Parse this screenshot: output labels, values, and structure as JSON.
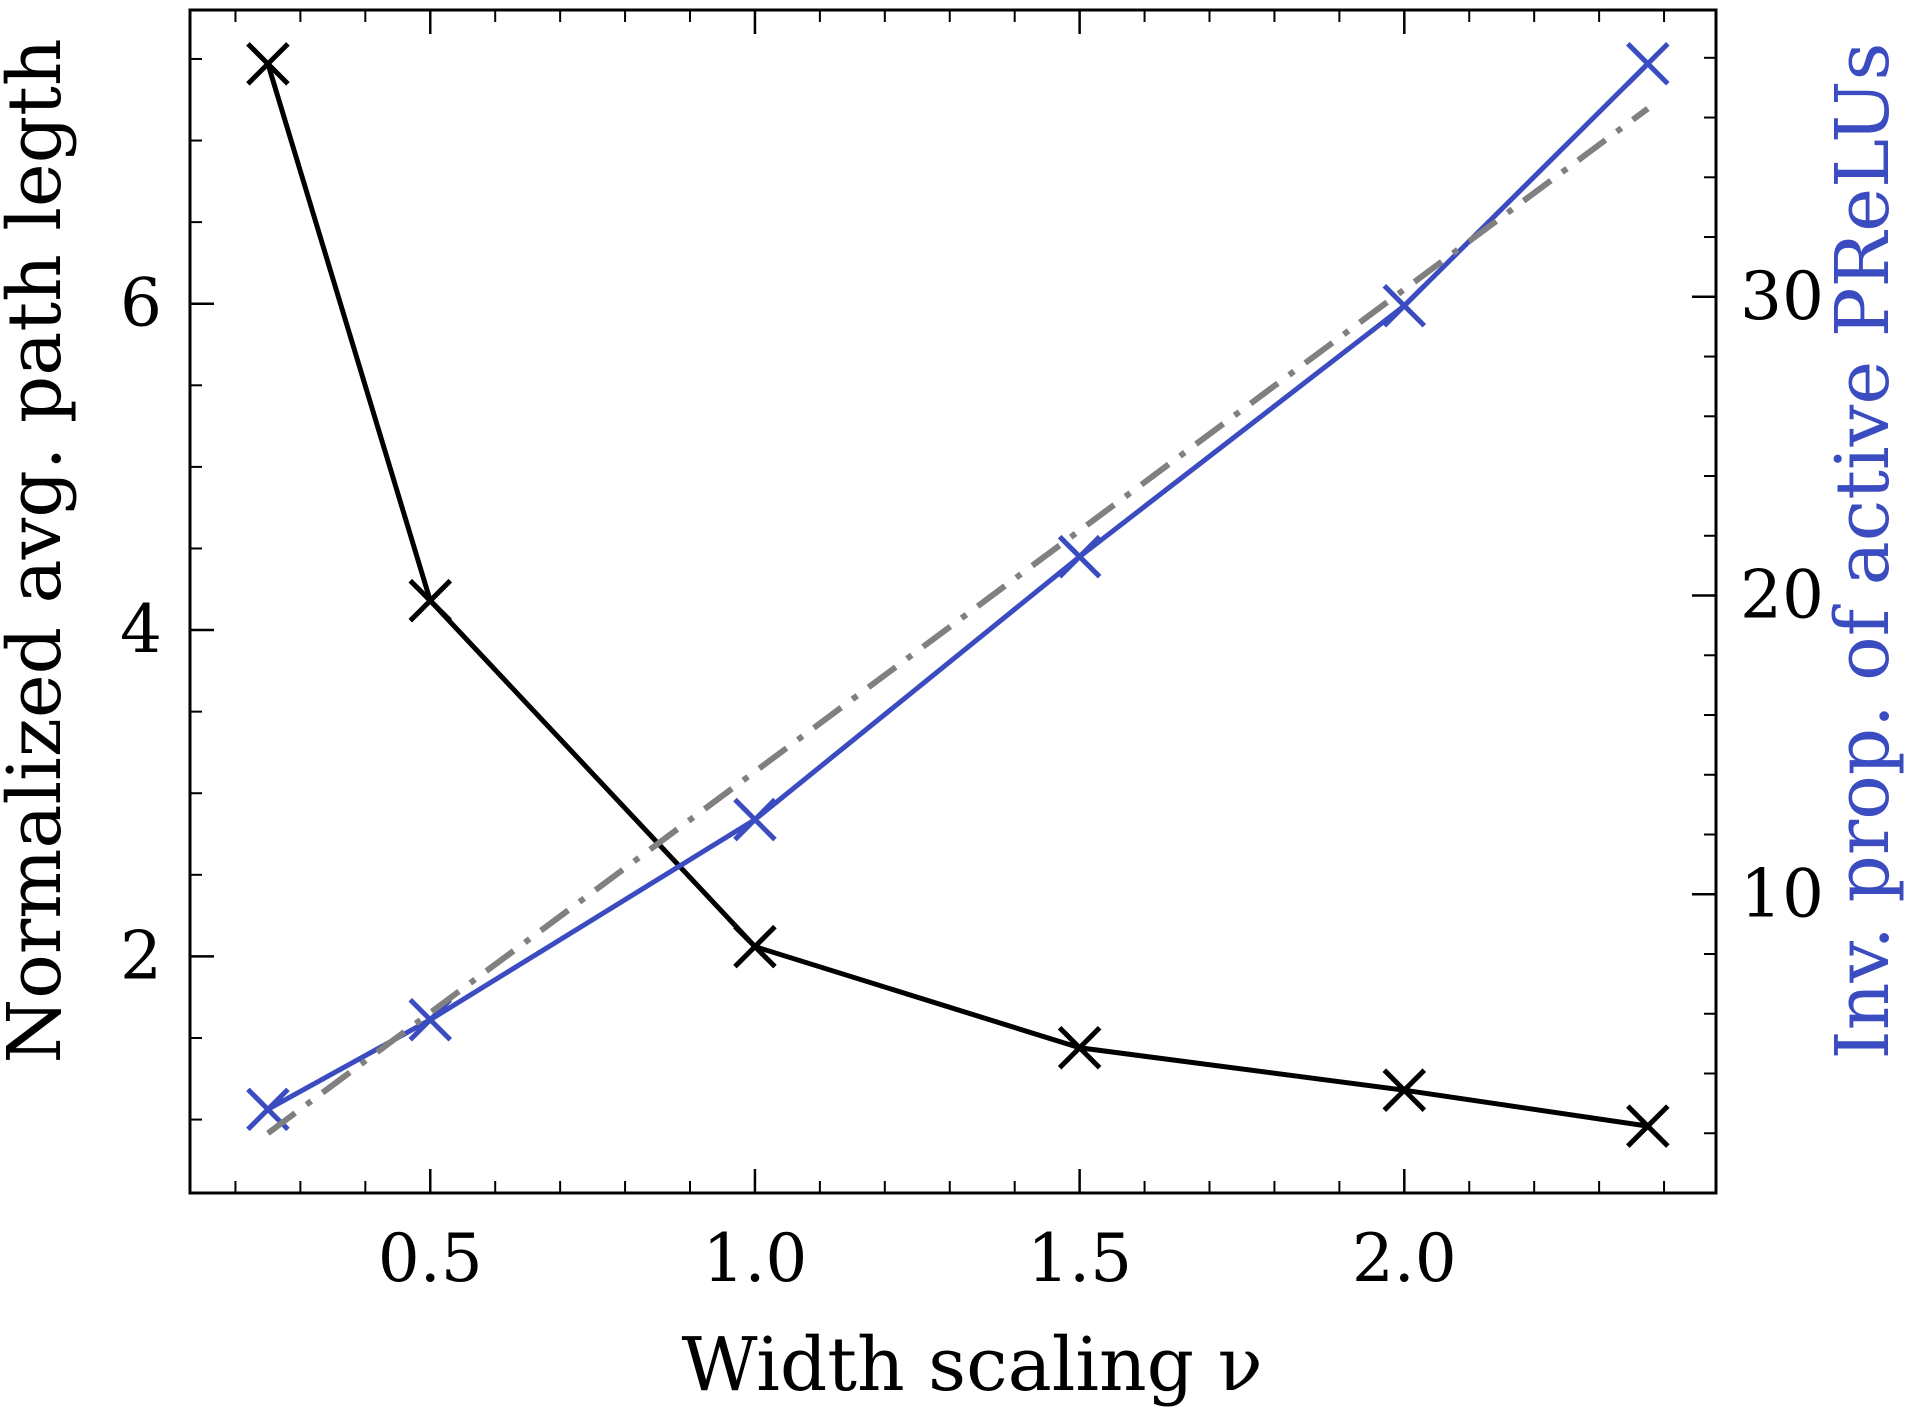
{
  "chart_data": {
    "type": "line",
    "title": "",
    "xlabel": "Width scaling ν",
    "ylabel_left": "Normalized avg. path legth",
    "ylabel_right": "Inv. prop. of active PReLUs",
    "xlim": [
      0.13,
      2.48
    ],
    "ylim_left": [
      0.55,
      7.8
    ],
    "ylim_right": [
      0.0,
      39.6
    ],
    "x_ticks": [
      0.5,
      1.0,
      1.5,
      2.0
    ],
    "x_tick_labels": [
      "0.5",
      "1.0",
      "1.5",
      "2.0"
    ],
    "x_minor_ticks": [
      0.2,
      0.3,
      0.4,
      0.6,
      0.7,
      0.8,
      0.9,
      1.1,
      1.2,
      1.3,
      1.4,
      1.6,
      1.7,
      1.8,
      1.9,
      2.1,
      2.2,
      2.3,
      2.4
    ],
    "y_left_ticks": [
      2,
      4,
      6
    ],
    "y_left_tick_labels": [
      "2",
      "4",
      "6"
    ],
    "y_left_minor_ticks": [
      1,
      1.5,
      2.5,
      3,
      3.5,
      4.5,
      5,
      5.5,
      6.5,
      7,
      7.5
    ],
    "y_right_ticks": [
      10,
      20,
      30
    ],
    "y_right_tick_labels": [
      "10",
      "20",
      "30"
    ],
    "y_right_minor_ticks": [
      2,
      4,
      6,
      8,
      12,
      14,
      16,
      18,
      22,
      24,
      26,
      28,
      32,
      34,
      36,
      38
    ],
    "grid": false,
    "series": [
      {
        "axis": "left",
        "color": "#000000",
        "marker": "x",
        "line": "solid",
        "x": [
          0.25,
          0.5,
          1.0,
          1.5,
          2.0,
          2.375
        ],
        "y": [
          7.47,
          4.18,
          2.06,
          1.44,
          1.18,
          0.96
        ]
      },
      {
        "axis": "right",
        "color": "#3b4cc0",
        "marker": "x",
        "line": "solid",
        "x": [
          0.25,
          0.5,
          1.0,
          1.5,
          2.0,
          2.375
        ],
        "y": [
          2.8,
          5.8,
          12.5,
          21.3,
          29.7,
          37.8
        ]
      },
      {
        "axis": "right",
        "color": "#808080",
        "marker": "none",
        "line": "dashdot",
        "x": [
          0.25,
          2.375
        ],
        "y": [
          2.0,
          36.3
        ]
      }
    ]
  }
}
